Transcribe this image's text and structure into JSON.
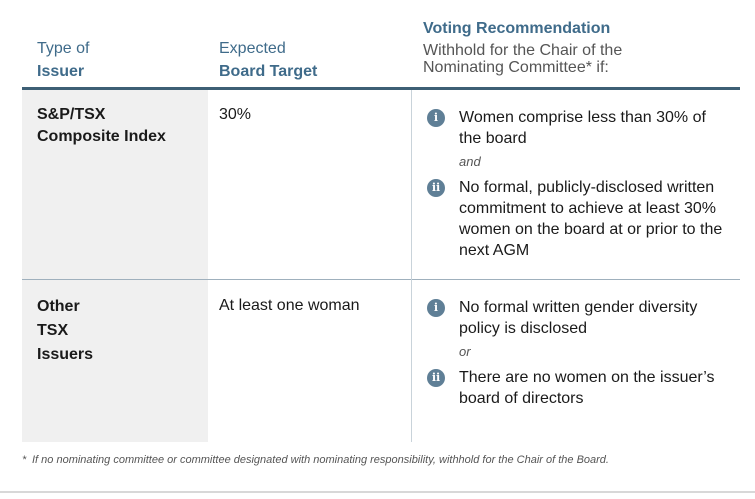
{
  "header": {
    "col1_line1": "Type of",
    "col1_line2": "Issuer",
    "col2_line1": "Expected",
    "col2_line2": "Board Target",
    "col3_title": "Voting Recommendation",
    "col3_sub1": "Withhold for the Chair of the",
    "col3_sub2": "Nominating Committee* if:"
  },
  "rows": [
    {
      "issuer_line1": "S&P/TSX",
      "issuer_line2": "Composite Index",
      "target": "30%",
      "items": [
        {
          "badge": "i",
          "text": "Women comprise less than 30% of the board"
        },
        {
          "badge": "ii",
          "text": "No formal, publicly-disclosed written commitment to achieve at least 30% women on the board at or prior to the next AGM"
        }
      ],
      "conjunction": "and"
    },
    {
      "issuer_line1": "Other",
      "issuer_line2": "TSX",
      "issuer_line3": "Issuers",
      "target": "At least one woman",
      "items": [
        {
          "badge": "i",
          "text": "No formal written gender diversity policy is disclosed"
        },
        {
          "badge": "ii",
          "text": "There are no women on the issuer’s board of directors"
        }
      ],
      "conjunction": "or"
    }
  ],
  "footnote": {
    "star": "*",
    "text": "If no nominating committee or committee designated with nominating responsibility, withhold for the Chair of the Board."
  },
  "colors": {
    "header_blue": "#3f6b8a",
    "rule_dark": "#3d5f75",
    "badge": "#5f7f96",
    "shade": "#f0f0f0"
  }
}
